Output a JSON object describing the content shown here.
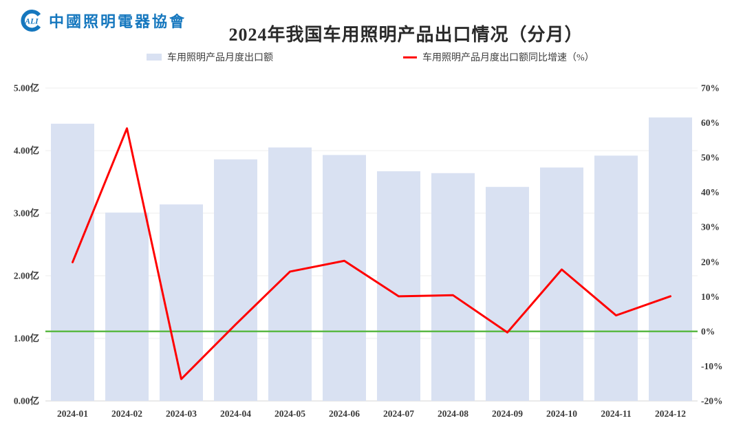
{
  "header": {
    "logo_abbr": "ALI",
    "logo_text": "中國照明電器協會",
    "title": "2024年我国车用照明产品出口情况（分月）"
  },
  "legend": {
    "bar_label": "车用照明产品月度出口额",
    "line_label": "车用照明产品月度出口额同比增速（%）"
  },
  "chart_data": {
    "type": "combo",
    "title": "2024年我国车用照明产品出口情况（分月）",
    "categories": [
      "2024-01",
      "2024-02",
      "2024-03",
      "2024-04",
      "2024-05",
      "2024-06",
      "2024-07",
      "2024-08",
      "2024-09",
      "2024-10",
      "2024-11",
      "2024-12"
    ],
    "series": [
      {
        "name": "车用照明产品月度出口额",
        "type": "bar",
        "axis": "left",
        "unit": "亿",
        "values": [
          4.43,
          3.01,
          3.14,
          3.86,
          4.05,
          3.93,
          3.67,
          3.64,
          3.42,
          3.73,
          3.92,
          4.53
        ]
      },
      {
        "name": "车用照明产品月度出口额同比增速（%）",
        "type": "line",
        "axis": "right",
        "unit": "%",
        "values": [
          19.9,
          58.4,
          -13.7,
          2.0,
          17.2,
          20.3,
          10.1,
          10.4,
          -0.3,
          17.8,
          4.6,
          10.1
        ]
      }
    ],
    "left_axis": {
      "min": 0,
      "max": 5,
      "tick_values": [
        0,
        1,
        2,
        3,
        4,
        5
      ],
      "tick_labels": [
        "0.00亿",
        "1.00亿",
        "2.00亿",
        "3.00亿",
        "4.00亿",
        "5.00亿"
      ]
    },
    "right_axis": {
      "min": -20,
      "max": 70,
      "tick_values": [
        -20,
        -10,
        0,
        10,
        20,
        30,
        40,
        50,
        60,
        70
      ],
      "tick_labels": [
        "-20%",
        "-10%",
        "0%",
        "10%",
        "20%",
        "30%",
        "40%",
        "50%",
        "60%",
        "70%"
      ]
    },
    "zero_line": {
      "axis": "right",
      "value": 0,
      "color": "#5ab843"
    },
    "grid": true,
    "legend_position": "top",
    "colors": {
      "bar": "#d9e1f2",
      "line": "#ff0000",
      "grid": "#ececec",
      "baseline": "#d6d6d6",
      "axis_text": "#3a3a3a"
    }
  },
  "colors": {
    "logo_blue": "#1577be",
    "title_text": "#2a2a2a"
  }
}
